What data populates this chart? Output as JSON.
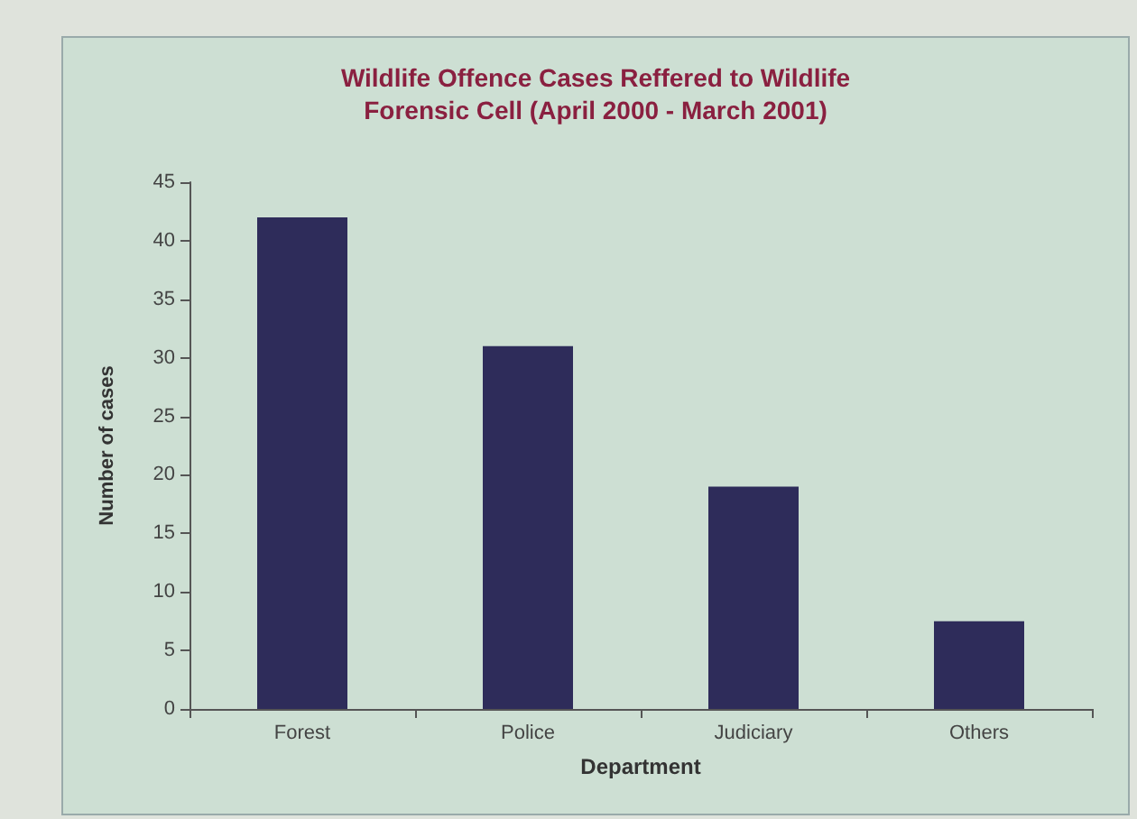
{
  "chart_data": {
    "type": "bar",
    "title": "Wildlife Offence Cases Reffered to Wildlife\nForensic Cell (April 2000 - March 2001)",
    "xlabel": "Department",
    "ylabel": "Number of cases",
    "categories": [
      "Forest",
      "Police",
      "Judiciary",
      "Others"
    ],
    "values": [
      42,
      31,
      19,
      7.5
    ],
    "color": "#2e2c5a",
    "ylim": [
      0,
      45
    ],
    "yticks": [
      0,
      5,
      10,
      15,
      20,
      25,
      30,
      35,
      40,
      45
    ],
    "grid": false
  }
}
